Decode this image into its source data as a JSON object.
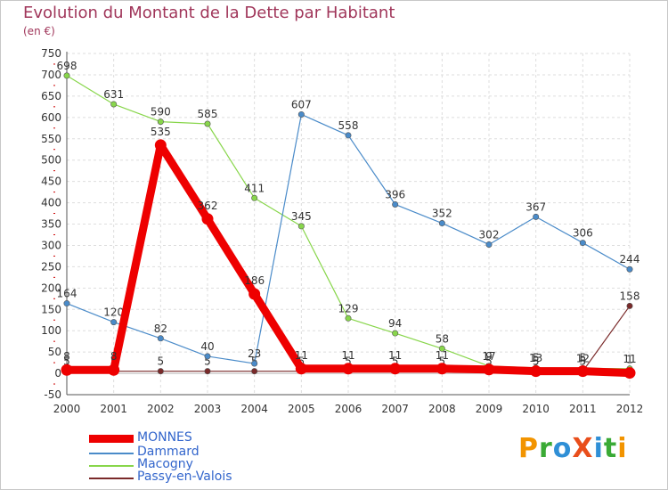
{
  "header": {
    "title": "Evolution du Montant de la Dette par Habitant",
    "subtitle": "(en €)"
  },
  "logo": {
    "text": "ProXiti",
    "colors": [
      "#f29400",
      "#3aaa35",
      "#2f8fd6",
      "#e94e1b",
      "#2f8fd6",
      "#3aaa35",
      "#f29400"
    ]
  },
  "chart_data": {
    "type": "line",
    "x": [
      "2000",
      "2001",
      "2002",
      "2003",
      "2004",
      "2005",
      "2006",
      "2007",
      "2008",
      "2009",
      "2010",
      "2011",
      "2012"
    ],
    "ylim": [
      -50,
      750
    ],
    "yticks": [
      -50,
      0,
      50,
      100,
      150,
      200,
      250,
      300,
      350,
      400,
      450,
      500,
      550,
      600,
      650,
      700,
      750
    ],
    "grid": true,
    "legend_position": "bottom-left",
    "series": [
      {
        "name": "MONNES",
        "color": "#ee0000",
        "values": [
          8,
          8,
          535,
          362,
          186,
          11,
          11,
          11,
          11,
          9,
          5,
          5,
          1
        ],
        "labels": [
          "8",
          "8",
          "535",
          "362",
          "186",
          "11",
          "11",
          "11",
          "11",
          "9",
          "5",
          "5",
          "1"
        ]
      },
      {
        "name": "Dammard",
        "color": "#4a8bc9",
        "values": [
          164,
          120,
          82,
          40,
          23,
          607,
          558,
          396,
          352,
          302,
          367,
          306,
          244
        ],
        "labels": [
          "164",
          "120",
          "82",
          "40",
          "23",
          "607",
          "558",
          "396",
          "352",
          "302",
          "367",
          "306",
          "244"
        ]
      },
      {
        "name": "Macogny",
        "color": "#88d64b",
        "values": [
          698,
          631,
          590,
          585,
          411,
          345,
          129,
          94,
          58,
          17,
          13,
          12,
          11
        ],
        "labels": [
          "698",
          "631",
          "590",
          "585",
          "411",
          "345",
          "129",
          "94",
          "58",
          "17",
          "13",
          "12",
          "11"
        ]
      },
      {
        "name": "Passy-en-Valois",
        "color": "#7a2a2a",
        "values": [
          5,
          5,
          5,
          5,
          5,
          5,
          5,
          5,
          5,
          5,
          5,
          5,
          158
        ],
        "labels": [
          "5",
          "5",
          "5",
          "5",
          "5",
          "5",
          "5",
          "5",
          "5",
          "5",
          "5",
          "5",
          "158"
        ]
      }
    ]
  }
}
